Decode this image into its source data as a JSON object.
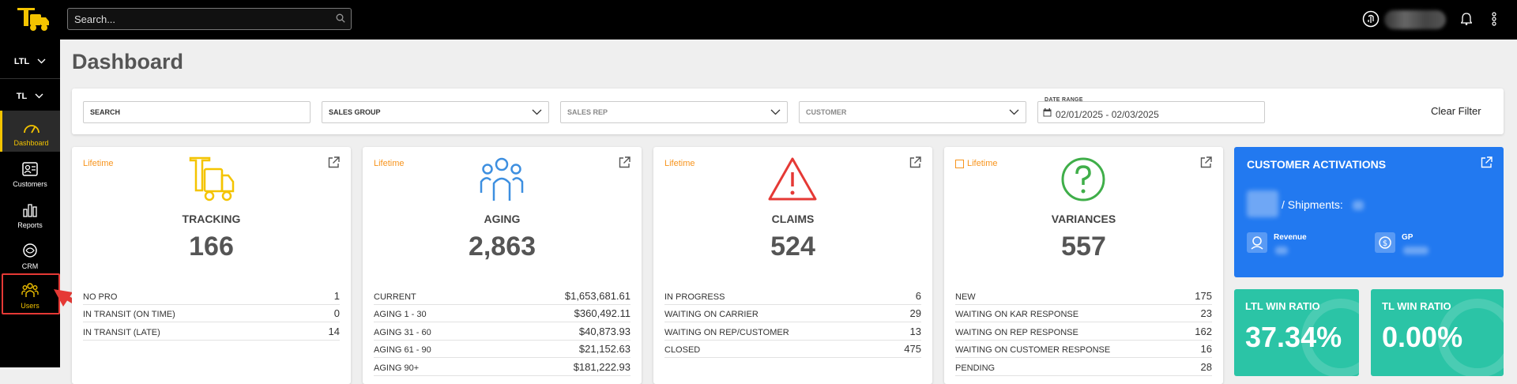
{
  "header": {
    "search_placeholder": "Search..."
  },
  "sidebar": {
    "dropdowns": [
      {
        "label": "LTL"
      },
      {
        "label": "TL"
      }
    ],
    "items": [
      {
        "label": "Dashboard",
        "icon": "gauge-icon"
      },
      {
        "label": "Customers",
        "icon": "contact-card-icon"
      },
      {
        "label": "Reports",
        "icon": "bar-chart-icon"
      },
      {
        "label": "CRM",
        "icon": "crm-cycle-icon"
      },
      {
        "label": "Users",
        "icon": "users-icon"
      }
    ]
  },
  "page": {
    "title": "Dashboard"
  },
  "filters": {
    "search": "SEARCH",
    "sales_group": "SALES GROUP",
    "sales_rep": "SALES REP",
    "customer": "CUSTOMER",
    "date_range_label": "DATE RANGE",
    "date_range_value": "02/01/2025 - 02/03/2025",
    "clear": "Clear Filter"
  },
  "cards": [
    {
      "badge": "Lifetime",
      "title": "TRACKING",
      "value": "166",
      "icon": "truck-icon",
      "color": "#f4c400",
      "rows": [
        {
          "label": "NO PRO",
          "value": "1"
        },
        {
          "label": "IN TRANSIT (ON TIME)",
          "value": "0"
        },
        {
          "label": "IN TRANSIT (LATE)",
          "value": "14"
        }
      ]
    },
    {
      "badge": "Lifetime",
      "title": "AGING",
      "value": "2,863",
      "icon": "users-group-icon",
      "color": "#3d8fe0",
      "rows": [
        {
          "label": "CURRENT",
          "value": "$1,653,681.61"
        },
        {
          "label": "AGING 1 - 30",
          "value": "$360,492.11"
        },
        {
          "label": "AGING 31 - 60",
          "value": "$40,873.93"
        },
        {
          "label": "AGING 61 - 90",
          "value": "$21,152.63"
        },
        {
          "label": "AGING 90+",
          "value": "$181,222.93"
        }
      ]
    },
    {
      "badge": "Lifetime",
      "title": "CLAIMS",
      "value": "524",
      "icon": "warning-triangle-icon",
      "color": "#e53935",
      "rows": [
        {
          "label": "IN PROGRESS",
          "value": "6"
        },
        {
          "label": "WAITING ON CARRIER",
          "value": "29"
        },
        {
          "label": "WAITING ON REP/CUSTOMER",
          "value": "13"
        },
        {
          "label": "CLOSED",
          "value": "475"
        }
      ]
    },
    {
      "badge": "Lifetime",
      "title": "VARIANCES",
      "value": "557",
      "icon": "question-circle-icon",
      "color": "#3fae49",
      "rows": [
        {
          "label": "NEW",
          "value": "175"
        },
        {
          "label": "WAITING ON KAR RESPONSE",
          "value": "23"
        },
        {
          "label": "WAITING ON REP RESPONSE",
          "value": "162"
        },
        {
          "label": "WAITING ON CUSTOMER RESPONSE",
          "value": "16"
        },
        {
          "label": "PENDING",
          "value": "28"
        }
      ]
    }
  ],
  "activations": {
    "title": "CUSTOMER ACTIVATIONS",
    "shipments_label": "/ Shipments:",
    "revenue_label": "Revenue",
    "gp_label": "GP",
    "color": "#2279f0"
  },
  "win_ratios": [
    {
      "title": "LTL WIN RATIO",
      "value": "37.34%"
    },
    {
      "title": "TL WIN RATIO",
      "value": "0.00%"
    }
  ]
}
